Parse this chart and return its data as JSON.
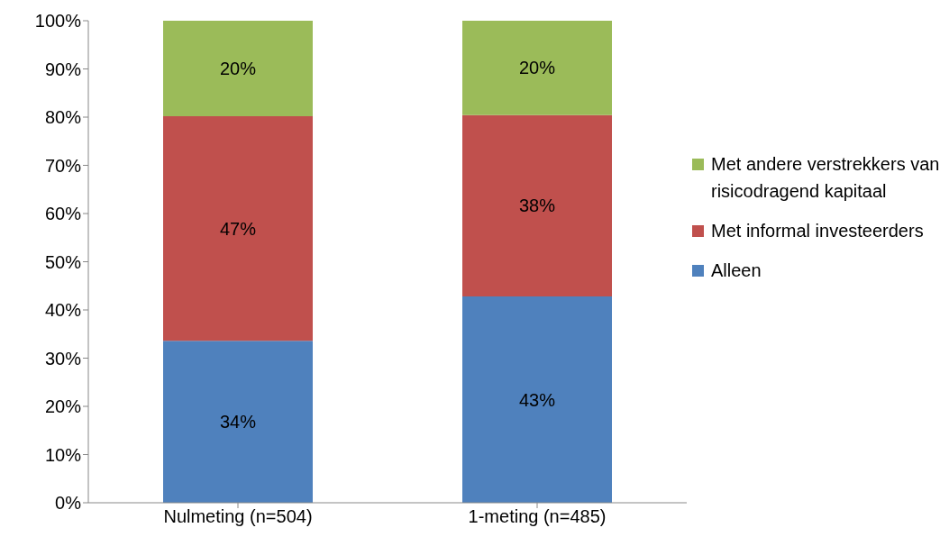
{
  "chart_data": {
    "type": "bar",
    "stacked": true,
    "categories": [
      "Nulmeting (n=504)",
      "1-meting (n=485)"
    ],
    "series": [
      {
        "name": "Alleen",
        "color": "#4f81bd",
        "values": [
          33.6,
          42.8
        ],
        "value_labels": [
          "34%",
          "43%"
        ]
      },
      {
        "name": "Met informal investeerders",
        "color": "#c0504d",
        "values": [
          46.6,
          37.6
        ],
        "value_labels": [
          "47%",
          "38%"
        ]
      },
      {
        "name": "Met andere verstrekkers van risicodragend kapitaal",
        "color": "#9bbb59",
        "values": [
          19.8,
          19.6
        ],
        "value_labels": [
          "20%",
          "20%"
        ]
      }
    ],
    "ylim": [
      0,
      100
    ],
    "yticks": [
      {
        "value": 0,
        "label": "0%"
      },
      {
        "value": 10,
        "label": "10%"
      },
      {
        "value": 20,
        "label": "20%"
      },
      {
        "value": 30,
        "label": "30%"
      },
      {
        "value": 40,
        "label": "40%"
      },
      {
        "value": 50,
        "label": "50%"
      },
      {
        "value": 60,
        "label": "60%"
      },
      {
        "value": 70,
        "label": "70%"
      },
      {
        "value": 80,
        "label": "80%"
      },
      {
        "value": 90,
        "label": "90%"
      },
      {
        "value": 100,
        "label": "100%"
      }
    ],
    "legend": "right",
    "grid": false
  }
}
